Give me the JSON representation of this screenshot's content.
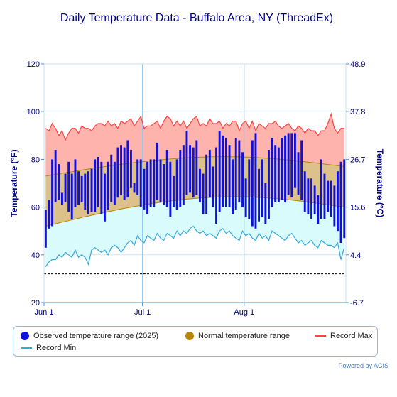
{
  "chart_data": {
    "type": "line",
    "title": "Daily Temperature Data - Buffalo Area, NY (ThreadEx)",
    "ylabel": "Temperature (°F)",
    "ylabel_right": "Temperature (°C)",
    "ylim": [
      20,
      120
    ],
    "yticks": [
      "120",
      "100",
      "80",
      "60",
      "40",
      "20"
    ],
    "ylim_right": [
      -6.7,
      48.9
    ],
    "yticks_right": [
      "48.9",
      "37.8",
      "26.7",
      "15.6",
      "4.4",
      "-6.7"
    ],
    "xlim": [
      "2025-06-01",
      "2025-08-31"
    ],
    "xticks": [
      {
        "label": "Jun 1",
        "date": "2025-06-01"
      },
      {
        "label": "Jul 1",
        "date": "2025-07-01"
      },
      {
        "label": "Aug 1",
        "date": "2025-08-01"
      }
    ],
    "reference_line_f": 32,
    "series": [
      {
        "name": "Observed temperature range (2025)",
        "color": "#1010dd",
        "start": "2025-06-01",
        "highs": [
          59,
          63,
          80,
          84,
          78,
          66,
          74,
          79,
          74,
          80,
          75,
          73,
          74,
          75,
          76,
          80,
          81,
          79,
          74,
          79,
          82,
          79,
          85,
          86,
          85,
          88,
          84,
          70,
          80,
          80,
          76,
          79,
          80,
          80,
          87,
          80,
          78,
          84,
          79,
          73,
          80,
          84,
          86,
          92,
          86,
          85,
          88,
          76,
          74,
          82,
          84,
          77,
          85,
          92,
          90,
          89,
          86,
          80,
          89,
          88,
          83,
          72,
          80,
          88,
          91,
          76,
          80,
          70,
          84,
          89,
          86,
          85,
          89,
          90,
          91,
          91,
          91,
          83,
          88,
          75,
          72,
          72,
          69,
          65,
          80,
          74,
          71,
          71,
          69,
          75,
          79,
          80
        ],
        "lows": [
          43,
          51,
          52,
          62,
          63,
          61,
          62,
          58,
          55,
          60,
          61,
          62,
          59,
          57,
          58,
          58,
          60,
          57,
          54,
          59,
          62,
          61,
          64,
          65,
          63,
          64,
          68,
          66,
          65,
          60,
          59,
          57,
          60,
          60,
          63,
          62,
          61,
          60,
          56,
          60,
          59,
          60,
          61,
          65,
          66,
          64,
          65,
          62,
          57,
          57,
          64,
          60,
          53,
          58,
          60,
          60,
          60,
          57,
          59,
          62,
          60,
          56,
          55,
          52,
          51,
          54,
          56,
          53,
          55,
          60,
          62,
          62,
          63,
          62,
          65,
          64,
          68,
          65,
          63,
          58,
          57,
          55,
          57,
          53,
          55,
          55,
          58,
          56,
          52,
          50,
          45,
          47
        ]
      },
      {
        "name": "Normal temperature range",
        "color": "#b8860b",
        "highs_start_end": [
          73,
          77
        ],
        "highs_peak": 81,
        "highs_peak_date": "2025-07-20",
        "lows_start_end": [
          52,
          60
        ],
        "lows_peak": 64,
        "lows_peak_date": "2025-07-20"
      },
      {
        "name": "Record Max",
        "color": "#ff4444",
        "values": [
          93,
          92,
          95,
          93,
          90,
          92,
          88,
          91,
          93,
          93,
          91,
          94,
          93,
          93,
          92,
          94,
          95,
          95,
          94,
          96,
          94,
          95,
          93,
          96,
          95,
          96,
          97,
          94,
          96,
          98,
          93,
          94,
          94,
          95,
          96,
          93,
          96,
          98,
          97,
          94,
          96,
          94,
          96,
          93,
          95,
          97,
          98,
          94,
          95,
          94,
          97,
          95,
          95,
          96,
          93,
          95,
          94,
          96,
          96,
          92,
          95,
          96,
          93,
          96,
          92,
          95,
          94,
          93,
          95,
          95,
          96,
          94,
          93,
          94,
          95,
          93,
          92,
          94,
          93,
          91,
          93,
          92,
          92,
          90,
          92,
          92,
          95,
          99,
          93,
          91,
          93,
          93
        ]
      },
      {
        "name": "Record Min",
        "color": "#33aadd",
        "values": [
          35,
          37,
          38,
          38,
          40,
          39,
          41,
          40,
          39,
          42,
          39,
          40,
          39,
          36,
          42,
          43,
          42,
          41,
          42,
          40,
          43,
          44,
          43,
          41,
          43,
          45,
          46,
          44,
          48,
          46,
          45,
          48,
          47,
          46,
          49,
          47,
          46,
          49,
          48,
          47,
          50,
          48,
          50,
          49,
          51,
          52,
          50,
          49,
          50,
          48,
          49,
          48,
          47,
          50,
          51,
          49,
          50,
          48,
          47,
          46,
          50,
          48,
          49,
          47,
          46,
          49,
          47,
          48,
          46,
          50,
          49,
          48,
          47,
          46,
          48,
          49,
          47,
          45,
          46,
          44,
          45,
          46,
          44,
          43,
          46,
          45,
          44,
          44,
          43,
          45,
          38,
          43
        ]
      }
    ],
    "legend_position": "bottom"
  },
  "legend": {
    "observed": "Observed temperature range (2025)",
    "normal": "Normal temperature range",
    "record_max": "Record Max",
    "record_min": "Record Min"
  },
  "colors": {
    "observed": "#1010dd",
    "normal": "#b8860b",
    "normal_fill": "#dcc28a",
    "record_max": "#ff4444",
    "record_max_fill": "#ffb3ad",
    "record_min": "#33aadd",
    "record_min_fill": "#d9fbfb",
    "axis_text": "#000080",
    "grid": "#cfe6f5"
  },
  "credit": "Powered by ACIS"
}
